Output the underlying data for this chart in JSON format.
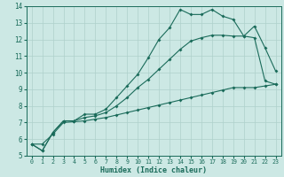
{
  "title": "",
  "xlabel": "Humidex (Indice chaleur)",
  "bg_color": "#cce8e4",
  "line_color": "#1a6b5a",
  "grid_color": "#aed0cb",
  "xlim": [
    -0.5,
    23.5
  ],
  "ylim": [
    5,
    14
  ],
  "xticks": [
    0,
    1,
    2,
    3,
    4,
    5,
    6,
    7,
    8,
    9,
    10,
    11,
    12,
    13,
    14,
    15,
    16,
    17,
    18,
    19,
    20,
    21,
    22,
    23
  ],
  "yticks": [
    5,
    6,
    7,
    8,
    9,
    10,
    11,
    12,
    13,
    14
  ],
  "line1_x": [
    0,
    1,
    2,
    3,
    4,
    5,
    6,
    7,
    8,
    9,
    10,
    11,
    12,
    13,
    14,
    15,
    16,
    17,
    18,
    19,
    20,
    21,
    22,
    23
  ],
  "line1_y": [
    5.7,
    5.3,
    6.4,
    7.1,
    7.1,
    7.5,
    7.5,
    7.8,
    8.5,
    9.2,
    9.9,
    10.9,
    12.0,
    12.7,
    13.8,
    13.5,
    13.5,
    13.8,
    13.4,
    13.2,
    12.2,
    12.8,
    11.5,
    10.1
  ],
  "line2_x": [
    0,
    1,
    2,
    3,
    4,
    5,
    6,
    7,
    8,
    9,
    10,
    11,
    12,
    13,
    14,
    15,
    16,
    17,
    18,
    19,
    20,
    21,
    22,
    23
  ],
  "line2_y": [
    5.7,
    5.3,
    6.4,
    7.1,
    7.1,
    7.3,
    7.4,
    7.6,
    8.0,
    8.5,
    9.1,
    9.6,
    10.2,
    10.8,
    11.4,
    11.9,
    12.1,
    12.25,
    12.25,
    12.2,
    12.2,
    12.1,
    9.5,
    9.3
  ],
  "line3_x": [
    0,
    1,
    2,
    3,
    4,
    5,
    6,
    7,
    8,
    9,
    10,
    11,
    12,
    13,
    14,
    15,
    16,
    17,
    18,
    19,
    20,
    21,
    22,
    23
  ],
  "line3_y": [
    5.7,
    5.7,
    6.3,
    7.0,
    7.05,
    7.1,
    7.2,
    7.3,
    7.45,
    7.6,
    7.75,
    7.9,
    8.05,
    8.2,
    8.35,
    8.5,
    8.65,
    8.8,
    8.95,
    9.1,
    9.1,
    9.1,
    9.2,
    9.3
  ]
}
